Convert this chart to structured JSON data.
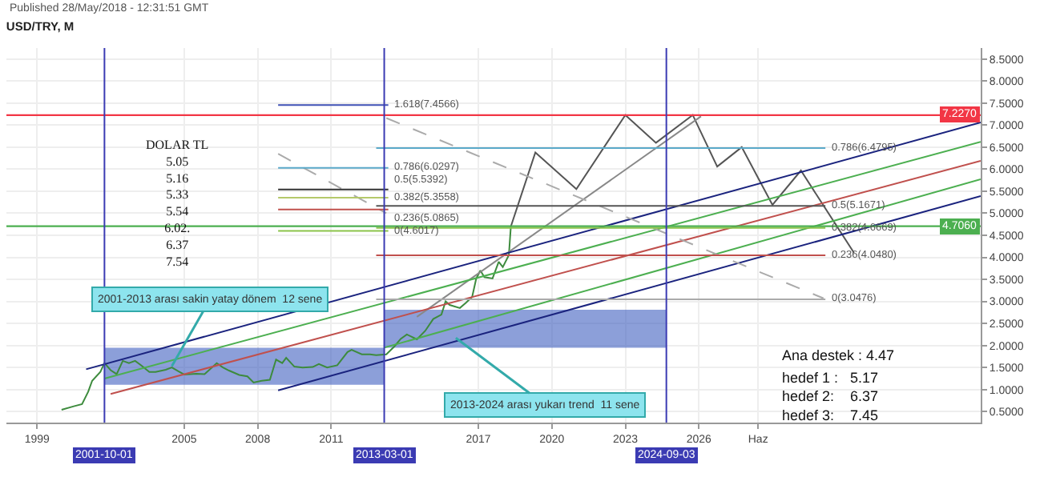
{
  "chart_data": {
    "type": "line",
    "title": "USD/TRY, M",
    "xlim": [
      "1997-10",
      "2037-07"
    ],
    "ylim": [
      0.25,
      8.75
    ],
    "xticks": [
      "1999",
      "2005",
      "2008",
      "2011",
      "2017",
      "2020",
      "2023",
      "2026",
      {
        "value": "2028-06",
        "label": "Haz"
      }
    ],
    "yticks": [
      {
        "value": 0.5,
        "label": "0.5000"
      },
      {
        "value": 1,
        "label": "1.0000"
      },
      {
        "value": 1.5,
        "label": "1.5000"
      },
      {
        "value": 2,
        "label": "2.0000"
      },
      {
        "value": 2.5,
        "label": "2.5000"
      },
      {
        "value": 3,
        "label": "3.0000"
      },
      {
        "value": 3.5,
        "label": "3.5000"
      },
      {
        "value": 4,
        "label": "4.0000"
      },
      {
        "value": 4.5,
        "label": "4.5000"
      },
      {
        "value": 5,
        "label": "5.0000"
      },
      {
        "value": 5.5,
        "label": "5.5000"
      },
      {
        "value": 6,
        "label": "6.0000"
      },
      {
        "value": 6.5,
        "label": "6.5000"
      },
      {
        "value": 7,
        "label": "7.0000"
      },
      {
        "value": 7.5,
        "label": "7.5000"
      },
      {
        "value": 8,
        "label": "8.0000"
      },
      {
        "value": 8.5,
        "label": "8.5000"
      }
    ],
    "grid": true,
    "series": [
      {
        "color": "#3d8b3d",
        "x": [
          "2000-01",
          "2000-07",
          "2000-11",
          "2001-02",
          "2001-04",
          "2001-08",
          "2001-10",
          "2002-01",
          "2002-04",
          "2002-07",
          "2002-10",
          "2003-01",
          "2003-04",
          "2003-08",
          "2003-11",
          "2004-04",
          "2004-07",
          "2004-10",
          "2005-01",
          "2005-07",
          "2005-11",
          "2006-05",
          "2006-08",
          "2006-11",
          "2007-04",
          "2007-08",
          "2007-11",
          "2008-03",
          "2008-07",
          "2008-10",
          "2009-01",
          "2009-03",
          "2009-07",
          "2009-11",
          "2010-04",
          "2010-07",
          "2010-11",
          "2011-04",
          "2011-09",
          "2011-11",
          "2012-04",
          "2012-08",
          "2012-11",
          "2013-04",
          "2013-08",
          "2013-11",
          "2014-02",
          "2014-07",
          "2014-11",
          "2015-03",
          "2015-07",
          "2015-09",
          "2015-11",
          "2016-04",
          "2016-07",
          "2016-10",
          "2016-12",
          "2017-02",
          "2017-04",
          "2017-08",
          "2017-11",
          "2018-01",
          "2018-04",
          "2018-05"
        ],
        "values": [
          0.54,
          0.62,
          0.67,
          0.95,
          1.2,
          1.4,
          1.6,
          1.44,
          1.35,
          1.65,
          1.6,
          1.65,
          1.55,
          1.4,
          1.4,
          1.45,
          1.5,
          1.42,
          1.34,
          1.36,
          1.35,
          1.6,
          1.5,
          1.43,
          1.33,
          1.3,
          1.16,
          1.2,
          1.22,
          1.68,
          1.6,
          1.72,
          1.52,
          1.5,
          1.51,
          1.58,
          1.5,
          1.55,
          1.85,
          1.9,
          1.8,
          1.8,
          1.78,
          1.8,
          1.98,
          2.15,
          2.25,
          2.14,
          2.33,
          2.6,
          2.7,
          3.0,
          2.92,
          2.85,
          2.97,
          3.1,
          3.52,
          3.7,
          3.55,
          3.52,
          3.9,
          3.78,
          4.05,
          4.7
        ]
      },
      {
        "color": "#555555",
        "x": [
          "2018-05",
          "2019-05",
          "2021-01",
          "2023-01",
          "2024-04",
          "2025-10",
          "2026-10",
          "2027-10",
          "2029-01",
          "2030-03",
          "2032-05"
        ],
        "values": [
          4.7,
          6.38,
          5.55,
          7.23,
          6.6,
          7.23,
          6.06,
          6.5,
          5.19,
          5.97,
          4.1
        ]
      },
      {
        "color": "#888888",
        "x": [
          "2014-07",
          "2026-02"
        ],
        "values": [
          2.65,
          7.2
        ]
      },
      {
        "color": "#1a237e",
        "x": [
          "2001-01",
          "2037-07"
        ],
        "values": [
          1.46,
          7.06
        ]
      },
      {
        "color": "#1a237e",
        "x": [
          "2008-11",
          "2037-07"
        ],
        "values": [
          0.98,
          5.39
        ]
      },
      {
        "color": "#4caf50",
        "x": [
          "2001-10",
          "2037-07"
        ],
        "values": [
          1.25,
          6.62
        ]
      },
      {
        "color": "#c0504d",
        "x": [
          "2002-01",
          "2037-07"
        ],
        "values": [
          0.9,
          6.19
        ]
      },
      {
        "color": "#4caf50",
        "x": [
          "2013-03",
          "2037-07"
        ],
        "values": [
          1.95,
          5.77
        ]
      },
      {
        "color": "#aaaaaa",
        "line_style": "dashed",
        "x": [
          "2008-11",
          "2013-04"
        ],
        "values": [
          6.35,
          5.0
        ]
      },
      {
        "color": "#aaaaaa",
        "line_style": "dashed",
        "x": [
          "2013-04",
          "2031-02"
        ],
        "values": [
          7.16,
          3.07
        ]
      },
      {
        "color": "#3f51b5",
        "x": [
          "2008-11",
          "2013-05"
        ],
        "values": [
          7.4566,
          7.4566
        ]
      },
      {
        "color": "#5aa9c9",
        "x": [
          "2008-11",
          "2013-05"
        ],
        "values": [
          6.0297,
          6.0297
        ]
      },
      {
        "color": "#333333",
        "x": [
          "2008-11",
          "2013-05"
        ],
        "values": [
          5.5392,
          5.5392
        ]
      },
      {
        "color": "#b5c96a",
        "x": [
          "2008-11",
          "2013-05"
        ],
        "values": [
          5.3558,
          5.3558
        ]
      },
      {
        "color": "#c0504d",
        "x": [
          "2008-11",
          "2013-05"
        ],
        "values": [
          5.0865,
          5.0865
        ]
      },
      {
        "color": "#8bc34a",
        "x": [
          "2008-11",
          "2013-05"
        ],
        "values": [
          4.6017,
          4.6017
        ]
      },
      {
        "color": "#5aa9c9",
        "x": [
          "2012-11",
          "2031-03"
        ],
        "values": [
          6.4795,
          6.4795
        ]
      },
      {
        "color": "#555555",
        "x": [
          "2012-11",
          "2031-03"
        ],
        "values": [
          5.1671,
          5.1671
        ]
      },
      {
        "color": "#8bc34a",
        "x": [
          "2012-11",
          "2031-03"
        ],
        "values": [
          4.6669,
          4.6669
        ]
      },
      {
        "color": "#c0504d",
        "x": [
          "2012-11",
          "2031-03"
        ],
        "values": [
          4.048,
          4.048
        ]
      },
      {
        "color": "#aaaaaa",
        "x": [
          "2012-11",
          "2031-03"
        ],
        "values": [
          3.0476,
          3.0476
        ]
      },
      {
        "type": "area",
        "color": "#3f5fbf",
        "x": [
          "2001-10-01",
          "2013-03-01"
        ],
        "values": [
          null,
          null
        ],
        "lower": [
          1.11,
          1.11
        ],
        "upper": [
          1.95,
          1.95
        ]
      },
      {
        "type": "area",
        "color": "#3f5fbf",
        "x": [
          "2013-03-01",
          "2024-09-03"
        ],
        "values": [
          null,
          null
        ],
        "lower": [
          1.95,
          1.95
        ],
        "upper": [
          2.81,
          2.81
        ]
      }
    ],
    "ref_lines": [
      {
        "axis": "y",
        "value": 7.227,
        "label": "7.2270",
        "color": "#f23645"
      },
      {
        "axis": "y",
        "value": 4.706,
        "label": "4.7060",
        "color": "#4caf50"
      },
      {
        "axis": "x",
        "value": "2001-10-01",
        "label": "2001-10-01",
        "color": "#3b3bb3"
      },
      {
        "axis": "x",
        "value": "2013-03-01",
        "label": "2013-03-01",
        "color": "#3b3bb3"
      },
      {
        "axis": "x",
        "value": "2024-09-03",
        "label": "2024-09-03",
        "color": "#3b3bb3"
      }
    ],
    "annotations": [
      "Published 28/May/2018 - 12:31:51 GMT",
      "DOLAR TL\n5.05\n5.16\n5.33\n5.54\n6.02.\n6.37\n7.54",
      "Ana destek : 4.47",
      "hedef 1 :   5.17\nhedef 2:    6.37\nhedef 3:    7.45",
      {
        "text": "2001-2013 arası sakin yatay dönem  12 sene",
        "x": "2004-07",
        "y": 1.53
      },
      {
        "text": "2013-2024 arası yukarı trend  11 sene",
        "x": "2016-02",
        "y": 2.17
      },
      {
        "text": "1.618(7.4566)",
        "x": "2013-05",
        "y": 7.4566
      },
      {
        "text": "0.786(6.0297)",
        "x": "2013-05",
        "y": 6.0297
      },
      {
        "text": "0.5(5.5392)",
        "x": "2013-05",
        "y": 5.5392
      },
      {
        "text": "0.382(5.3558)",
        "x": "2013-05",
        "y": 5.3558
      },
      {
        "text": "0.236(5.0865)",
        "x": "2013-05",
        "y": 5.0865
      },
      {
        "text": "0(4.6017)",
        "x": "2013-05",
        "y": 4.6017
      },
      {
        "text": "0.786(6.4795)",
        "x": "2031-03",
        "y": 6.4795
      },
      {
        "text": "0.5(5.1671)",
        "x": "2031-03",
        "y": 5.1671
      },
      {
        "text": "0.382(4.6669)",
        "x": "2031-03",
        "y": 4.6669
      },
      {
        "text": "0.236(4.0480)",
        "x": "2031-03",
        "y": 4.048
      },
      {
        "text": "0(3.0476)",
        "x": "2031-03",
        "y": 3.0476
      }
    ]
  }
}
